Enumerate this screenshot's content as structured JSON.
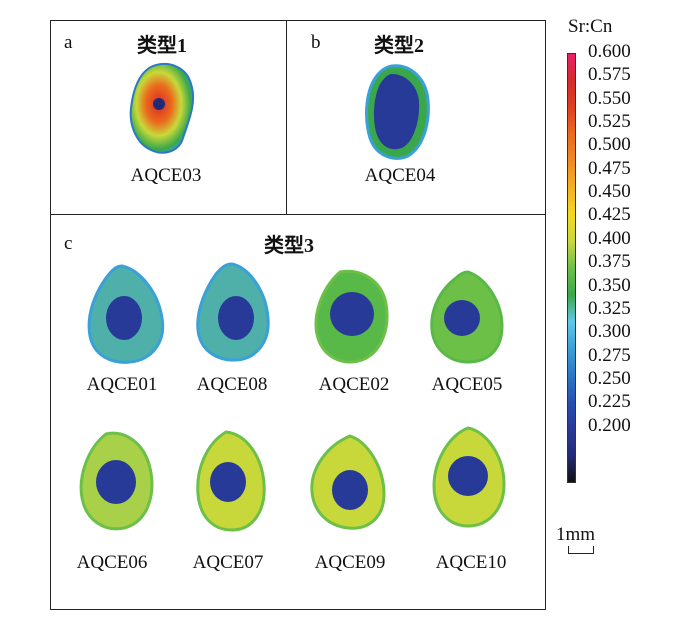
{
  "panels": [
    {
      "letter": "a",
      "title": "类型1",
      "samples": [
        "AQCE03"
      ]
    },
    {
      "letter": "b",
      "title": "类型2",
      "samples": [
        "AQCE04"
      ]
    },
    {
      "letter": "c",
      "title": "类型3",
      "samples": [
        "AQCE01",
        "AQCE08",
        "AQCE02",
        "AQCE05",
        "AQCE06",
        "AQCE07",
        "AQCE09",
        "AQCE10"
      ]
    }
  ],
  "colorbar": {
    "title": "Sr:Cn",
    "ticks": [
      "0.600",
      "0.575",
      "0.550",
      "0.525",
      "0.500",
      "0.475",
      "0.450",
      "0.425",
      "0.400",
      "0.375",
      "0.350",
      "0.325",
      "0.300",
      "0.275",
      "0.250",
      "0.225",
      "0.200"
    ],
    "colors": [
      "#e8206a",
      "#d62a2a",
      "#e04020",
      "#ec6a1c",
      "#f08a20",
      "#f4b020",
      "#f4d820",
      "#c8d83a",
      "#6cc048",
      "#3aa84a",
      "#5ec8e8",
      "#3aa0d8",
      "#2a78c8",
      "#2850b0",
      "#283a98",
      "#222a78",
      "#111111"
    ]
  },
  "scale": {
    "label": "1mm"
  }
}
